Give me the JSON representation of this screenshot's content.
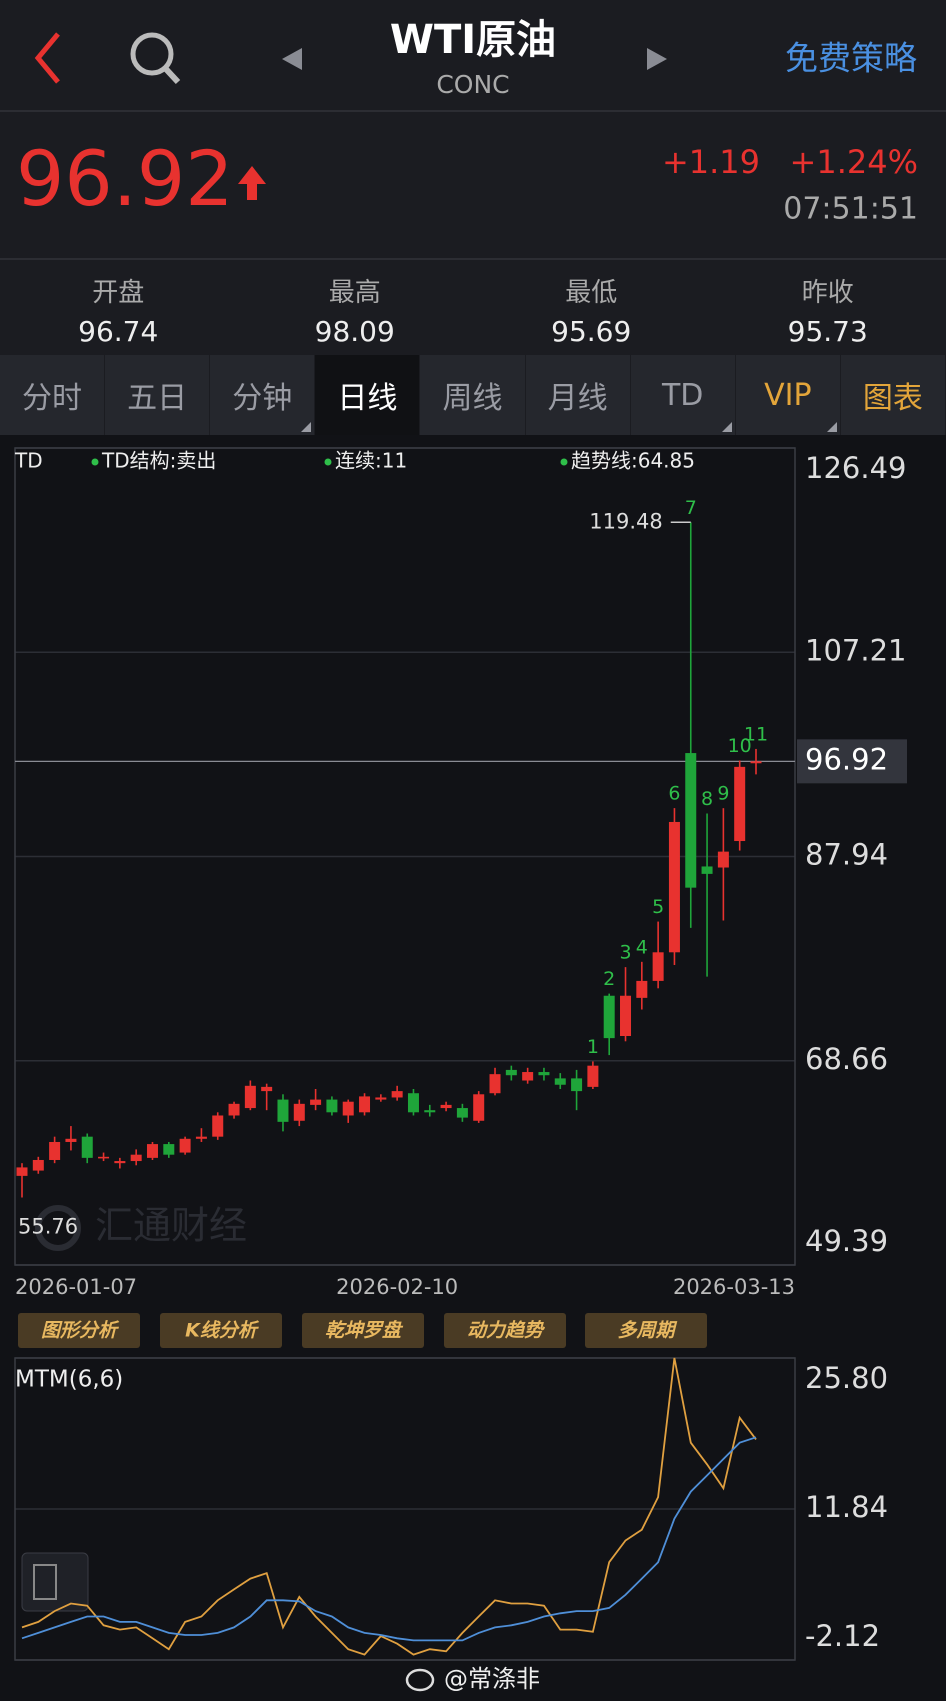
{
  "header": {
    "title": "WTI原油",
    "code": "CONC",
    "action": "免费策略"
  },
  "quote": {
    "price": 96.92,
    "change": "+1.19",
    "change_pct": "+1.24%",
    "time": "07:51:51"
  },
  "stats": [
    {
      "label": "开盘",
      "value": 96.74
    },
    {
      "label": "最高",
      "value": 98.09
    },
    {
      "label": "最低",
      "value": 95.69
    },
    {
      "label": "昨收",
      "value": 95.73
    }
  ],
  "tabs": [
    {
      "label": "分时"
    },
    {
      "label": "五日"
    },
    {
      "label": "分钟",
      "dropdown": true
    },
    {
      "label": "日线",
      "selected": true
    },
    {
      "label": "周线"
    },
    {
      "label": "月线"
    },
    {
      "label": "TD",
      "dropdown": true
    },
    {
      "label": "VIP",
      "accent": true,
      "dropdown": true
    },
    {
      "label": "图表",
      "accent": true
    }
  ],
  "tools": [
    "图形分析",
    "K线分析",
    "乾坤罗盘",
    "动力趋势",
    "多周期"
  ],
  "watermark": "汇通财经",
  "footer": "@常涤非",
  "chart_data": [
    {
      "type": "candlestick",
      "title": "TD",
      "legend": [
        "TD结构:卖出",
        "连续:11",
        "趋势线:64.85"
      ],
      "categories": [
        "2026-01-07",
        null,
        null,
        null,
        null,
        null,
        null,
        null,
        null,
        null,
        null,
        null,
        null,
        null,
        null,
        null,
        null,
        null,
        null,
        null,
        null,
        null,
        null,
        "2026-02-10",
        null,
        null,
        null,
        null,
        null,
        null,
        null,
        null,
        null,
        null,
        null,
        null,
        null,
        null,
        null,
        null,
        null,
        null,
        null,
        null,
        null,
        "2026-03-13"
      ],
      "open": [
        57.8,
        58.3,
        59.3,
        61.0,
        61.5,
        59.5,
        59.0,
        59.2,
        59.5,
        60.8,
        60.0,
        61.3,
        61.5,
        63.5,
        64.2,
        65.8,
        65.0,
        63.0,
        64.5,
        65.0,
        63.5,
        63.8,
        65.0,
        65.2,
        65.6,
        64.0,
        64.2,
        64.2,
        63.0,
        65.6,
        67.8,
        66.8,
        67.6,
        67.0,
        67.0,
        66.2,
        74.8,
        71.0,
        74.6,
        76.2,
        78.9,
        97.7,
        87.0,
        86.9,
        89.4,
        96.74
      ],
      "high": [
        59.0,
        59.6,
        61.5,
        62.5,
        61.8,
        60.0,
        59.5,
        60.3,
        61.0,
        61.0,
        61.5,
        62.3,
        63.8,
        64.8,
        66.8,
        66.5,
        65.5,
        65.0,
        66.0,
        65.3,
        65.0,
        65.6,
        65.5,
        66.3,
        66.0,
        64.5,
        64.8,
        64.6,
        65.8,
        68.0,
        68.2,
        68.0,
        68.0,
        67.5,
        67.8,
        68.6,
        75.0,
        77.5,
        78.0,
        81.8,
        92.5,
        119.48,
        92.0,
        92.5,
        97.0,
        98.09
      ],
      "low": [
        55.76,
        58.0,
        59.0,
        60.2,
        59.0,
        59.2,
        58.5,
        58.8,
        59.3,
        59.5,
        59.8,
        61.0,
        61.2,
        63.2,
        64.0,
        64.0,
        62.0,
        62.5,
        64.0,
        63.5,
        62.8,
        63.5,
        64.8,
        64.9,
        63.5,
        63.4,
        63.9,
        62.9,
        62.8,
        65.4,
        66.8,
        66.5,
        66.8,
        66.0,
        64.0,
        66.0,
        69.2,
        70.5,
        73.5,
        75.5,
        77.7,
        81.2,
        76.6,
        81.9,
        88.5,
        95.69
      ],
      "close": [
        58.6,
        59.3,
        61.0,
        61.3,
        59.5,
        59.6,
        59.2,
        59.8,
        60.8,
        59.8,
        61.3,
        61.5,
        63.5,
        64.6,
        66.3,
        66.2,
        62.9,
        64.6,
        65.0,
        63.8,
        64.8,
        65.3,
        65.2,
        65.8,
        63.8,
        63.8,
        64.5,
        63.3,
        65.5,
        67.4,
        67.3,
        67.6,
        67.3,
        66.4,
        65.8,
        68.2,
        70.8,
        74.8,
        76.2,
        78.9,
        91.2,
        85.0,
        86.3,
        88.4,
        96.4,
        96.92
      ],
      "td_labels": [
        null,
        null,
        null,
        null,
        null,
        null,
        null,
        null,
        null,
        null,
        null,
        null,
        null,
        null,
        null,
        null,
        null,
        null,
        null,
        null,
        null,
        null,
        null,
        null,
        null,
        null,
        null,
        null,
        null,
        null,
        null,
        null,
        null,
        null,
        null,
        1,
        2,
        3,
        4,
        5,
        6,
        7,
        8,
        9,
        10,
        11
      ],
      "up_color": "#e8322f",
      "down_color": "#1fa53a",
      "label_color": "#2fbf4a",
      "ylim": [
        49.39,
        126.49
      ],
      "yticks": [
        126.49,
        107.21,
        87.94,
        68.66,
        49.39
      ],
      "grid": true
    },
    {
      "type": "line",
      "title": "MTM(6,6)",
      "series": [
        {
          "color": "#e0a040",
          "values": [
            0.89,
            1.4,
            2.4,
            3.1,
            2.9,
            1.09,
            0.69,
            0.89,
            -0.11,
            -1.12,
            1.4,
            1.9,
            3.4,
            4.41,
            5.41,
            5.91,
            0.89,
            3.71,
            1.9,
            0.39,
            -1.12,
            -1.62,
            0.09,
            -0.61,
            -1.62,
            -1.12,
            -1.32,
            0.39,
            1.9,
            3.4,
            3.1,
            3.1,
            2.9,
            0.69,
            0.69,
            0.49,
            6.92,
            8.93,
            9.93,
            12.94,
            25.8,
            17.97,
            15.96,
            13.75,
            20.28,
            18.27
          ]
        },
        {
          "color": "#4f8fd8",
          "values": [
            -0.11,
            0.39,
            0.89,
            1.4,
            1.9,
            1.9,
            1.4,
            1.4,
            0.89,
            0.39,
            0.19,
            0.19,
            0.39,
            0.89,
            1.9,
            3.4,
            3.4,
            3.3,
            2.4,
            1.9,
            0.89,
            0.39,
            0.19,
            -0.11,
            -0.31,
            -0.31,
            -0.31,
            -0.31,
            0.39,
            0.89,
            1.09,
            1.4,
            1.9,
            2.2,
            2.4,
            2.4,
            2.7,
            3.91,
            5.41,
            6.92,
            10.94,
            13.45,
            14.95,
            16.46,
            17.97,
            18.47
          ]
        }
      ],
      "ylim": [
        -2.12,
        25.8
      ],
      "yticks": [
        {
          "value": 25.8,
          "label": "25.80"
        },
        11.84,
        -2.12
      ],
      "grid": true
    }
  ]
}
